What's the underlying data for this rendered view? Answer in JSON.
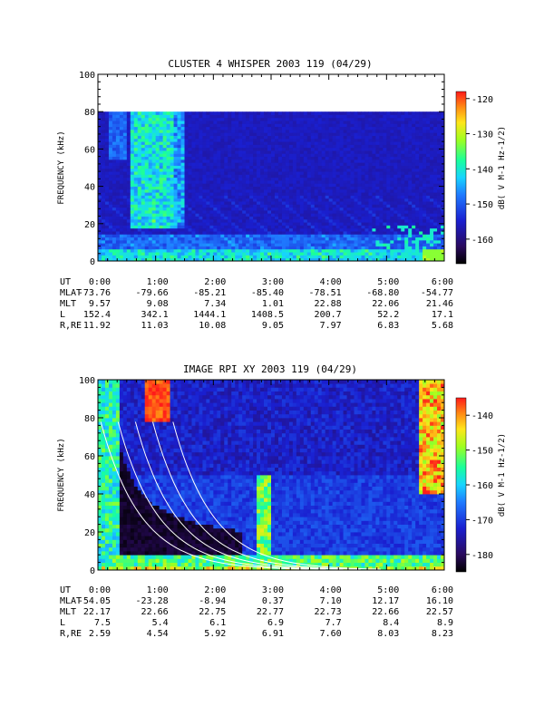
{
  "chart_data": [
    {
      "type": "heatmap",
      "title": "CLUSTER 4 WHISPER 2003 119 (04/29)",
      "ylabel": "FREQUENCY (kHz)",
      "ylim": [
        0,
        100
      ],
      "yticks": [
        "0",
        "20",
        "40",
        "60",
        "80",
        "100"
      ],
      "data_upper_limit_khz": 80,
      "colorbar": {
        "label": "dB( V M⁻¹ Hz⁻¹ᐟ²)",
        "label_text": "dB( V M-1 Hz-1/2)",
        "range": [
          -167,
          -118
        ],
        "ticks": [
          "-120",
          "-130",
          "-140",
          "-150",
          "-160"
        ]
      },
      "ephemeris": {
        "rows": [
          {
            "label": "UT",
            "values": [
              "0:00",
              "1:00",
              "2:00",
              "3:00",
              "4:00",
              "5:00",
              "6:00"
            ]
          },
          {
            "label": "MLAT",
            "values": [
              "-73.76",
              "-79.66",
              "-85.21",
              "-85.40",
              "-78.51",
              "-68.80",
              "-54.77"
            ]
          },
          {
            "label": "MLT",
            "values": [
              "9.57",
              "9.08",
              "7.34",
              "1.01",
              "22.88",
              "22.06",
              "21.46"
            ]
          },
          {
            "label": "L",
            "values": [
              "152.4",
              "342.1",
              "1444.1",
              "1408.5",
              "200.7",
              "52.2",
              "17.1"
            ]
          },
          {
            "label": "R,RE",
            "values": [
              "11.92",
              "11.03",
              "10.08",
              "9.05",
              "7.97",
              "6.83",
              "5.68"
            ]
          }
        ]
      }
    },
    {
      "type": "heatmap",
      "title": "IMAGE RPI XY 2003 119 (04/29)",
      "ylabel": "FREQUENCY (kHz)",
      "ylim": [
        0,
        100
      ],
      "yticks": [
        "0",
        "20",
        "40",
        "60",
        "80",
        "100"
      ],
      "colorbar": {
        "label_text": "dB( V M-1 Hz-1/2)",
        "range": [
          -185,
          -135
        ],
        "ticks": [
          "-140",
          "-150",
          "-160",
          "-170",
          "-180"
        ]
      },
      "ephemeris": {
        "rows": [
          {
            "label": "UT",
            "values": [
              "0:00",
              "1:00",
              "2:00",
              "3:00",
              "4:00",
              "5:00",
              "6:00"
            ]
          },
          {
            "label": "MLAT",
            "values": [
              "-54.05",
              "-23.28",
              "-8.94",
              "0.37",
              "7.10",
              "12.17",
              "16.10"
            ]
          },
          {
            "label": "MLT",
            "values": [
              "22.17",
              "22.66",
              "22.75",
              "22.77",
              "22.73",
              "22.66",
              "22.57"
            ]
          },
          {
            "label": "L",
            "values": [
              "7.5",
              "5.4",
              "6.1",
              "6.9",
              "7.7",
              "8.4",
              "8.9"
            ]
          },
          {
            "label": "R,RE",
            "values": [
              "2.59",
              "4.54",
              "5.92",
              "6.91",
              "7.60",
              "8.03",
              "8.23"
            ]
          }
        ]
      }
    }
  ]
}
